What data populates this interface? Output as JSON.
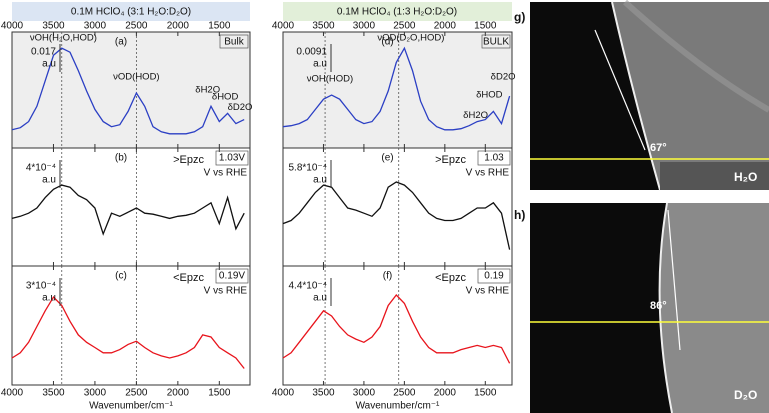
{
  "headers": [
    "0.1M HClO₄ (3:1 H₂O:D₂O)",
    "0.1M HClO₄ (1:3 H₂O:D₂O)"
  ],
  "chart_data": [
    {
      "type": "line",
      "label": "(a)",
      "corner": "Bulk",
      "scale_label": [
        "0.017",
        "a.u"
      ],
      "color": "#2b3fc4",
      "shaded": true,
      "xtick_labels": "top",
      "x": [
        4000,
        3900,
        3800,
        3700,
        3600,
        3500,
        3400,
        3300,
        3200,
        3100,
        3000,
        2900,
        2800,
        2700,
        2600,
        2500,
        2400,
        2300,
        2200,
        2100,
        2000,
        1900,
        1800,
        1700,
        1600,
        1500,
        1400,
        1300,
        1200
      ],
      "values": [
        0.12,
        0.14,
        0.2,
        0.35,
        0.6,
        0.85,
        0.92,
        0.88,
        0.7,
        0.5,
        0.32,
        0.2,
        0.15,
        0.17,
        0.3,
        0.48,
        0.35,
        0.15,
        0.1,
        0.08,
        0.08,
        0.08,
        0.1,
        0.15,
        0.35,
        0.2,
        0.28,
        0.18,
        0.22
      ],
      "xlim": [
        4000,
        1130
      ],
      "xticks": [
        4000,
        3500,
        3000,
        2500,
        2000,
        1500
      ],
      "ylim": [
        0,
        1
      ],
      "reference_lines": [
        3400,
        2500
      ],
      "annotations": [
        {
          "text": "νOH(H₂O,HOD)",
          "x": 3380,
          "y": 0.98
        },
        {
          "text": "νOD(HOD)",
          "x": 2500,
          "y": 0.6
        },
        {
          "text": "δH2O",
          "x": 1640,
          "y": 0.47
        },
        {
          "text": "δHOD",
          "x": 1430,
          "y": 0.4
        },
        {
          "text": "δD2O",
          "x": 1250,
          "y": 0.3
        }
      ]
    },
    {
      "type": "line",
      "label": "(b)",
      "condition": ">Epzc",
      "potential": "1.03V",
      "potential_unit": "V vs RHE",
      "scale_label": [
        "4*10⁻⁴",
        "a.u"
      ],
      "color": "#111111",
      "shaded": false,
      "xtick_labels": "none",
      "x": [
        4000,
        3900,
        3800,
        3700,
        3600,
        3500,
        3400,
        3300,
        3200,
        3100,
        3000,
        2900,
        2800,
        2700,
        2600,
        2500,
        2400,
        2300,
        2200,
        2100,
        2000,
        1900,
        1800,
        1700,
        1600,
        1500,
        1400,
        1300,
        1200
      ],
      "values": [
        0.4,
        0.42,
        0.45,
        0.5,
        0.6,
        0.68,
        0.72,
        0.7,
        0.62,
        0.58,
        0.5,
        0.25,
        0.45,
        0.42,
        0.46,
        0.5,
        0.45,
        0.44,
        0.42,
        0.4,
        0.42,
        0.43,
        0.45,
        0.5,
        0.55,
        0.35,
        0.6,
        0.3,
        0.45
      ],
      "xlim": [
        4000,
        1130
      ],
      "xticks": [
        4000,
        3500,
        3000,
        2500,
        2000,
        1500
      ],
      "ylim": [
        0,
        1
      ],
      "reference_lines": [
        3400,
        2500
      ]
    },
    {
      "type": "line",
      "label": "(c)",
      "condition": "<Epzc",
      "potential": "0.19V",
      "potential_unit": "V vs RHE",
      "scale_label": [
        "3*10⁻⁴",
        "a.u"
      ],
      "color": "#e8141c",
      "shaded": false,
      "xtick_labels": "bottom",
      "xlabel": "Wavenumber/cm⁻¹",
      "x": [
        4000,
        3900,
        3800,
        3700,
        3600,
        3500,
        3400,
        3300,
        3200,
        3100,
        3000,
        2900,
        2800,
        2700,
        2600,
        2500,
        2400,
        2300,
        2200,
        2100,
        2000,
        1900,
        1800,
        1700,
        1600,
        1500,
        1400,
        1300,
        1200
      ],
      "values": [
        0.2,
        0.25,
        0.35,
        0.5,
        0.65,
        0.78,
        0.7,
        0.55,
        0.42,
        0.35,
        0.3,
        0.25,
        0.25,
        0.28,
        0.33,
        0.36,
        0.3,
        0.25,
        0.22,
        0.2,
        0.22,
        0.25,
        0.3,
        0.42,
        0.4,
        0.3,
        0.25,
        0.2,
        0.1
      ],
      "xlim": [
        4000,
        1130
      ],
      "xticks": [
        4000,
        3500,
        3000,
        2500,
        2000,
        1500
      ],
      "ylim": [
        0,
        1
      ],
      "reference_lines": [
        3400,
        2500
      ]
    },
    {
      "type": "line",
      "label": "(d)",
      "corner": "BULK",
      "scale_label": [
        "0.0091",
        "a.u"
      ],
      "color": "#2b3fc4",
      "shaded": true,
      "xtick_labels": "top",
      "x": [
        4000,
        3900,
        3800,
        3700,
        3600,
        3500,
        3400,
        3300,
        3200,
        3100,
        3000,
        2900,
        2800,
        2700,
        2600,
        2500,
        2400,
        2300,
        2200,
        2100,
        2000,
        1900,
        1800,
        1700,
        1600,
        1500,
        1400,
        1300,
        1200
      ],
      "values": [
        0.15,
        0.16,
        0.18,
        0.22,
        0.32,
        0.42,
        0.46,
        0.42,
        0.32,
        0.22,
        0.18,
        0.2,
        0.3,
        0.5,
        0.78,
        0.92,
        0.7,
        0.4,
        0.22,
        0.15,
        0.12,
        0.12,
        0.13,
        0.16,
        0.2,
        0.22,
        0.3,
        0.18,
        0.45
      ],
      "xlim": [
        4000,
        1170
      ],
      "xticks": [
        4000,
        3500,
        3000,
        2500,
        2000,
        1500
      ],
      "ylim": [
        0,
        1
      ],
      "reference_lines": [
        3480,
        2570
      ],
      "annotations": [
        {
          "text": "νOH(HOD)",
          "x": 3420,
          "y": 0.58
        },
        {
          "text": "νOD(D₂O,HOD)",
          "x": 2420,
          "y": 0.98
        },
        {
          "text": "δH2O",
          "x": 1620,
          "y": 0.22
        },
        {
          "text": "δHOD",
          "x": 1450,
          "y": 0.42
        },
        {
          "text": "δD2O",
          "x": 1280,
          "y": 0.6
        }
      ]
    },
    {
      "type": "line",
      "label": "(e)",
      "condition": ">Epzc",
      "potential": "1.03",
      "potential_unit": "V vs RHE",
      "scale_label": [
        "5.8*10⁻⁴",
        "a.u"
      ],
      "color": "#111111",
      "shaded": false,
      "xtick_labels": "none",
      "x": [
        4000,
        3900,
        3800,
        3700,
        3600,
        3500,
        3400,
        3300,
        3200,
        3100,
        3000,
        2900,
        2800,
        2700,
        2600,
        2500,
        2400,
        2300,
        2200,
        2100,
        2000,
        1900,
        1800,
        1700,
        1600,
        1500,
        1400,
        1300,
        1200
      ],
      "values": [
        0.35,
        0.38,
        0.45,
        0.55,
        0.65,
        0.72,
        0.7,
        0.6,
        0.5,
        0.48,
        0.45,
        0.42,
        0.5,
        0.7,
        0.75,
        0.72,
        0.65,
        0.55,
        0.45,
        0.4,
        0.38,
        0.38,
        0.4,
        0.45,
        0.5,
        0.5,
        0.55,
        0.45,
        0.1
      ],
      "xlim": [
        4000,
        1170
      ],
      "xticks": [
        4000,
        3500,
        3000,
        2500,
        2000,
        1500
      ],
      "ylim": [
        0,
        1
      ],
      "reference_lines": [
        3480,
        2570
      ]
    },
    {
      "type": "line",
      "label": "(f)",
      "condition": "<Epzc",
      "potential": "0.19",
      "potential_unit": "V vs RHE",
      "scale_label": [
        "4.4*10⁻⁴",
        "a.u"
      ],
      "color": "#e8141c",
      "shaded": false,
      "xtick_labels": "bottom",
      "xlabel": "Wavenumber/cm⁻¹",
      "x": [
        4000,
        3900,
        3800,
        3700,
        3600,
        3500,
        3400,
        3300,
        3200,
        3100,
        3000,
        2900,
        2800,
        2700,
        2600,
        2500,
        2400,
        2300,
        2200,
        2100,
        2000,
        1900,
        1800,
        1700,
        1600,
        1500,
        1400,
        1300,
        1200
      ],
      "values": [
        0.2,
        0.25,
        0.35,
        0.45,
        0.55,
        0.65,
        0.6,
        0.5,
        0.42,
        0.38,
        0.35,
        0.4,
        0.5,
        0.7,
        0.8,
        0.72,
        0.55,
        0.4,
        0.3,
        0.25,
        0.25,
        0.25,
        0.28,
        0.3,
        0.32,
        0.3,
        0.32,
        0.3,
        0.15
      ],
      "xlim": [
        4000,
        1170
      ],
      "xticks": [
        4000,
        3500,
        3000,
        2500,
        2000,
        1500
      ],
      "ylim": [
        0,
        1
      ],
      "reference_lines": [
        3480,
        2570
      ]
    }
  ],
  "photos": [
    {
      "label": "g)",
      "angle": "67°",
      "liquid": "H₂O"
    },
    {
      "label": "h)",
      "angle": "86°",
      "liquid": "D₂O"
    }
  ]
}
